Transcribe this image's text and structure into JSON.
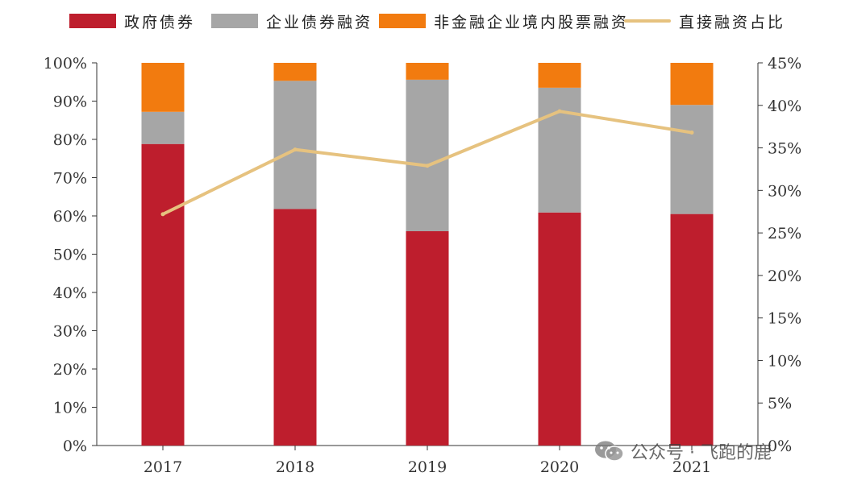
{
  "legend": [
    {
      "label": "政府债券",
      "color": "#BE1E2D",
      "kind": "bar"
    },
    {
      "label": "企业债券融资",
      "color": "#A6A6A6",
      "kind": "bar"
    },
    {
      "label": "非金融企业境内股票融资",
      "color": "#F27B0F",
      "kind": "bar"
    },
    {
      "label": "直接融资占比",
      "color": "#E6C27F",
      "kind": "line"
    }
  ],
  "watermark": {
    "text": "公众号 · 飞跑的鹿",
    "icon": "wechat-icon"
  },
  "chart_data": {
    "type": "bar",
    "stacked": true,
    "categories": [
      "2017",
      "2018",
      "2019",
      "2020",
      "2021"
    ],
    "series": [
      {
        "name": "政府债券",
        "color": "#BE1E2D",
        "axis": "left",
        "values": [
          78.8,
          61.8,
          56.0,
          60.9,
          60.5
        ]
      },
      {
        "name": "企业债券融资",
        "color": "#A6A6A6",
        "axis": "left",
        "values": [
          8.4,
          33.5,
          39.6,
          32.6,
          28.5
        ]
      },
      {
        "name": "非金融企业境内股票融资",
        "color": "#F27B0F",
        "axis": "left",
        "values": [
          12.8,
          4.7,
          4.4,
          6.5,
          11.0
        ]
      },
      {
        "name": "直接融资占比",
        "color": "#E6C27F",
        "axis": "right",
        "type": "line",
        "values": [
          27.2,
          34.8,
          32.9,
          39.3,
          36.8
        ]
      }
    ],
    "y_left": {
      "ylim": [
        0,
        100
      ],
      "ticks": [
        "0%",
        "10%",
        "20%",
        "30%",
        "40%",
        "50%",
        "60%",
        "70%",
        "80%",
        "90%",
        "100%"
      ]
    },
    "y_right": {
      "ylim": [
        0,
        45
      ],
      "ticks": [
        "0%",
        "5%",
        "10%",
        "15%",
        "20%",
        "25%",
        "30%",
        "35%",
        "40%",
        "45%"
      ]
    },
    "grid": false,
    "legend_position": "top"
  }
}
